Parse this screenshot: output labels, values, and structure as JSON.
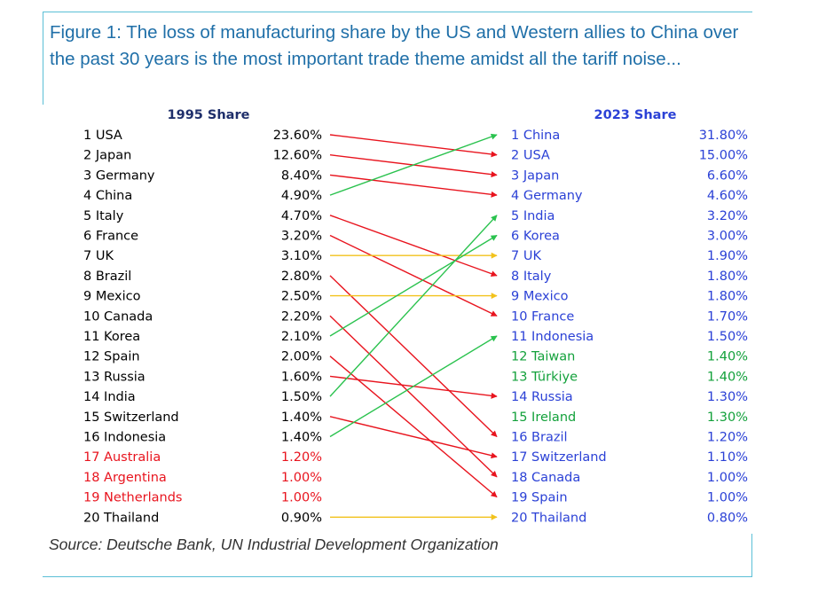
{
  "title": "Figure 1: The loss of manufacturing share by the US and Western allies to China over the past 30 years is the most important trade theme amidst all the tariff noise...",
  "source": "Source: Deutsche Bank, UN Industrial Development Organization",
  "colors": {
    "frame": "#5bbfd6",
    "title": "#1f6fa8",
    "left_default": "#000000",
    "left_highlight": "#e8141e",
    "right_default": "#2b41d6",
    "right_highlight": "#13a13b",
    "arrow_down": "#e8141e",
    "arrow_up": "#2ac24e",
    "arrow_same": "#f2c21c"
  },
  "chart_data": {
    "type": "table",
    "left_header": "1995 Share",
    "right_header": "2023 Share",
    "left": [
      {
        "label": "1 USA",
        "value": "23.60%",
        "highlight": false
      },
      {
        "label": "2 Japan",
        "value": "12.60%",
        "highlight": false
      },
      {
        "label": "3 Germany",
        "value": "8.40%",
        "highlight": false
      },
      {
        "label": "4 China",
        "value": "4.90%",
        "highlight": false
      },
      {
        "label": "5 Italy",
        "value": "4.70%",
        "highlight": false
      },
      {
        "label": "6 France",
        "value": "3.20%",
        "highlight": false
      },
      {
        "label": "7 UK",
        "value": "3.10%",
        "highlight": false
      },
      {
        "label": "8 Brazil",
        "value": "2.80%",
        "highlight": false
      },
      {
        "label": "9 Mexico",
        "value": "2.50%",
        "highlight": false
      },
      {
        "label": "10 Canada",
        "value": "2.20%",
        "highlight": false
      },
      {
        "label": "11 Korea",
        "value": "2.10%",
        "highlight": false
      },
      {
        "label": "12 Spain",
        "value": "2.00%",
        "highlight": false
      },
      {
        "label": "13 Russia",
        "value": "1.60%",
        "highlight": false
      },
      {
        "label": "14 India",
        "value": "1.50%",
        "highlight": false
      },
      {
        "label": "15 Switzerland",
        "value": "1.40%",
        "highlight": false
      },
      {
        "label": "16 Indonesia",
        "value": "1.40%",
        "highlight": false
      },
      {
        "label": "17 Australia",
        "value": "1.20%",
        "highlight": true
      },
      {
        "label": "18 Argentina",
        "value": "1.00%",
        "highlight": true
      },
      {
        "label": "19 Netherlands",
        "value": "1.00%",
        "highlight": true
      },
      {
        "label": "20 Thailand",
        "value": "0.90%",
        "highlight": false
      }
    ],
    "right": [
      {
        "label": "1 China",
        "value": "31.80%",
        "highlight": false
      },
      {
        "label": "2 USA",
        "value": "15.00%",
        "highlight": false
      },
      {
        "label": "3 Japan",
        "value": "6.60%",
        "highlight": false
      },
      {
        "label": "4 Germany",
        "value": "4.60%",
        "highlight": false
      },
      {
        "label": "5 India",
        "value": "3.20%",
        "highlight": false
      },
      {
        "label": "6 Korea",
        "value": "3.00%",
        "highlight": false
      },
      {
        "label": "7 UK",
        "value": "1.90%",
        "highlight": false
      },
      {
        "label": "8 Italy",
        "value": "1.80%",
        "highlight": false
      },
      {
        "label": "9 Mexico",
        "value": "1.80%",
        "highlight": false
      },
      {
        "label": "10 France",
        "value": "1.70%",
        "highlight": false
      },
      {
        "label": "11 Indonesia",
        "value": "1.50%",
        "highlight": false
      },
      {
        "label": "12 Taiwan",
        "value": "1.40%",
        "highlight": true
      },
      {
        "label": "13 Türkiye",
        "value": "1.40%",
        "highlight": true
      },
      {
        "label": "14 Russia",
        "value": "1.30%",
        "highlight": false
      },
      {
        "label": "15 Ireland",
        "value": "1.30%",
        "highlight": true
      },
      {
        "label": "16 Brazil",
        "value": "1.20%",
        "highlight": false
      },
      {
        "label": "17 Switzerland",
        "value": "1.10%",
        "highlight": false
      },
      {
        "label": "18 Canada",
        "value": "1.00%",
        "highlight": false
      },
      {
        "label": "19 Spain",
        "value": "1.00%",
        "highlight": false
      },
      {
        "label": "20 Thailand",
        "value": "0.80%",
        "highlight": false
      }
    ],
    "moves": [
      {
        "country": "USA",
        "from_rank": 1,
        "to_rank": 2
      },
      {
        "country": "Japan",
        "from_rank": 2,
        "to_rank": 3
      },
      {
        "country": "Germany",
        "from_rank": 3,
        "to_rank": 4
      },
      {
        "country": "China",
        "from_rank": 4,
        "to_rank": 1
      },
      {
        "country": "Italy",
        "from_rank": 5,
        "to_rank": 8
      },
      {
        "country": "France",
        "from_rank": 6,
        "to_rank": 10
      },
      {
        "country": "UK",
        "from_rank": 7,
        "to_rank": 7
      },
      {
        "country": "Brazil",
        "from_rank": 8,
        "to_rank": 16
      },
      {
        "country": "Mexico",
        "from_rank": 9,
        "to_rank": 9
      },
      {
        "country": "Canada",
        "from_rank": 10,
        "to_rank": 18
      },
      {
        "country": "Korea",
        "from_rank": 11,
        "to_rank": 6
      },
      {
        "country": "Spain",
        "from_rank": 12,
        "to_rank": 19
      },
      {
        "country": "Russia",
        "from_rank": 13,
        "to_rank": 14
      },
      {
        "country": "India",
        "from_rank": 14,
        "to_rank": 5
      },
      {
        "country": "Switzerland",
        "from_rank": 15,
        "to_rank": 17
      },
      {
        "country": "Indonesia",
        "from_rank": 16,
        "to_rank": 11
      },
      {
        "country": "Thailand",
        "from_rank": 20,
        "to_rank": 20
      }
    ]
  }
}
